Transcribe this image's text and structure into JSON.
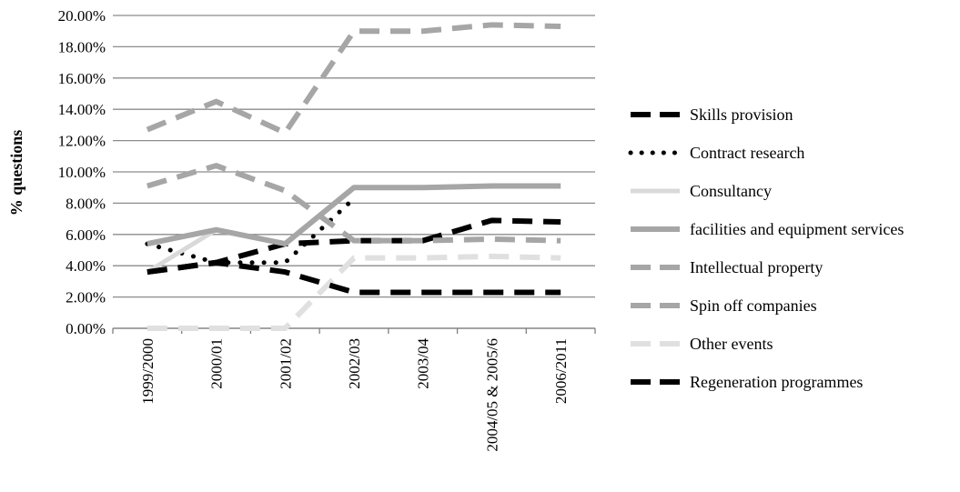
{
  "chart_data": {
    "type": "line",
    "title": "",
    "xlabel": "",
    "ylabel": "% questions",
    "ylim": [
      0,
      20
    ],
    "yticks": [
      "0.00%",
      "2.00%",
      "4.00%",
      "6.00%",
      "8.00%",
      "10.00%",
      "12.00%",
      "14.00%",
      "16.00%",
      "18.00%",
      "20.00%"
    ],
    "grid": "horizontal",
    "legend_position": "right",
    "categories": [
      "1999/2000",
      "2000/01",
      "2001/02",
      "2002/03",
      "2003/04",
      "2004/05 & 2005/6",
      "2006/2011"
    ],
    "series": [
      {
        "name": "Skills provision",
        "values": [
          3.6,
          4.2,
          5.4,
          5.6,
          5.6,
          6.9,
          6.8
        ],
        "color": "#000000",
        "style": "dash",
        "width": 6
      },
      {
        "name": "Contract research",
        "values": [
          5.4,
          4.2,
          4.2,
          8.3,
          null,
          null,
          null
        ],
        "color": "#000000",
        "style": "dot",
        "width": 5
      },
      {
        "name": "Consultancy",
        "values": [
          3.6,
          6.3,
          5.4,
          9.0,
          9.0,
          9.1,
          9.1
        ],
        "color": "#d9d9d9",
        "style": "solid",
        "width": 5
      },
      {
        "name": "facilities and equipment services",
        "values": [
          5.4,
          6.3,
          5.4,
          9.0,
          9.0,
          9.1,
          9.1
        ],
        "color": "#a6a6a6",
        "style": "solid",
        "width": 6
      },
      {
        "name": "Intellectual property",
        "values": [
          12.7,
          14.5,
          12.5,
          19.0,
          19.0,
          19.4,
          19.3
        ],
        "color": "#a6a6a6",
        "style": "dash",
        "width": 6
      },
      {
        "name": "Spin off companies",
        "values": [
          9.1,
          10.4,
          8.8,
          5.6,
          5.6,
          5.7,
          5.6
        ],
        "color": "#a6a6a6",
        "style": "dash",
        "width": 6
      },
      {
        "name": "Other events",
        "values": [
          0.0,
          0.0,
          0.0,
          4.5,
          4.5,
          4.6,
          4.5
        ],
        "color": "#e0e0e0",
        "style": "dash",
        "width": 6
      },
      {
        "name": "Regeneration programmes",
        "values": [
          3.6,
          4.2,
          3.6,
          2.3,
          2.3,
          2.3,
          2.3
        ],
        "color": "#000000",
        "style": "dash",
        "width": 6
      }
    ]
  }
}
